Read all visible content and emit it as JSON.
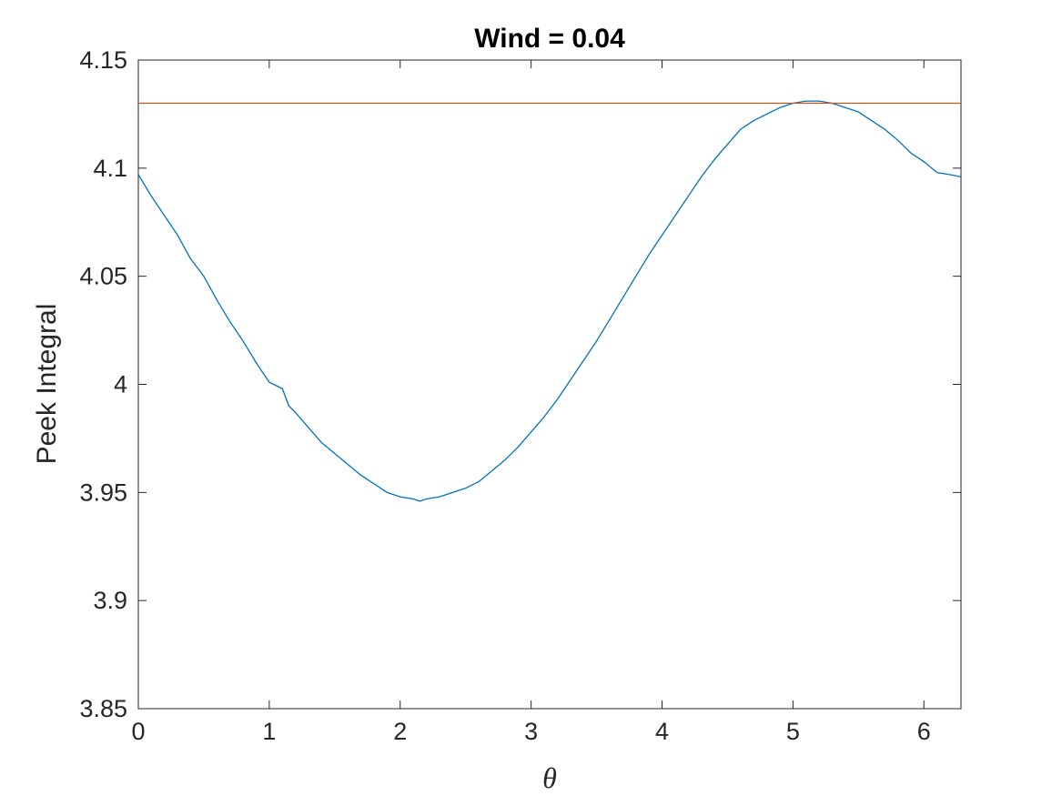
{
  "chart_data": {
    "type": "line",
    "title": "Wind = 0.04",
    "xlabel": "θ",
    "ylabel": "Peek Integral",
    "xlim": [
      0,
      6.2832
    ],
    "ylim": [
      3.85,
      4.15
    ],
    "xticks": [
      0,
      1,
      2,
      3,
      4,
      5,
      6
    ],
    "yticks": [
      3.85,
      3.9,
      3.95,
      4,
      4.05,
      4.1,
      4.15
    ],
    "xtick_labels": [
      "0",
      "1",
      "2",
      "3",
      "4",
      "5",
      "6"
    ],
    "ytick_labels": [
      "3.85",
      "3.9",
      "3.95",
      "4",
      "4.05",
      "4.1",
      "4.15"
    ],
    "grid": false,
    "box": true,
    "series": [
      {
        "color": "#0072BD",
        "x": [
          0,
          0.1,
          0.2,
          0.3,
          0.4,
          0.5,
          0.6,
          0.7,
          0.8,
          0.9,
          1.0,
          1.1,
          1.15,
          1.2,
          1.3,
          1.4,
          1.5,
          1.6,
          1.7,
          1.8,
          1.9,
          2.0,
          2.1,
          2.15,
          2.2,
          2.3,
          2.4,
          2.5,
          2.6,
          2.7,
          2.8,
          2.9,
          3.0,
          3.1,
          3.2,
          3.3,
          3.4,
          3.5,
          3.6,
          3.7,
          3.8,
          3.9,
          4.0,
          4.1,
          4.2,
          4.3,
          4.4,
          4.5,
          4.6,
          4.7,
          4.8,
          4.9,
          5.0,
          5.1,
          5.2,
          5.3,
          5.4,
          5.5,
          5.6,
          5.7,
          5.8,
          5.9,
          6.0,
          6.1,
          6.2,
          6.2832
        ],
        "y": [
          4.097,
          4.087,
          4.078,
          4.069,
          4.058,
          4.05,
          4.039,
          4.029,
          4.02,
          4.01,
          4.001,
          3.998,
          3.99,
          3.987,
          3.98,
          3.973,
          3.968,
          3.963,
          3.958,
          3.954,
          3.95,
          3.948,
          3.947,
          3.946,
          3.947,
          3.948,
          3.95,
          3.952,
          3.955,
          3.96,
          3.965,
          3.971,
          3.978,
          3.985,
          3.993,
          4.002,
          4.011,
          4.02,
          4.03,
          4.04,
          4.05,
          4.06,
          4.069,
          4.078,
          4.087,
          4.096,
          4.104,
          4.111,
          4.118,
          4.122,
          4.125,
          4.128,
          4.13,
          4.131,
          4.131,
          4.13,
          4.128,
          4.126,
          4.122,
          4.118,
          4.113,
          4.107,
          4.103,
          4.098,
          4.097,
          4.096
        ]
      },
      {
        "color": "#D95319",
        "x": [
          0,
          6.2832
        ],
        "y": [
          4.13,
          4.13
        ]
      }
    ]
  }
}
